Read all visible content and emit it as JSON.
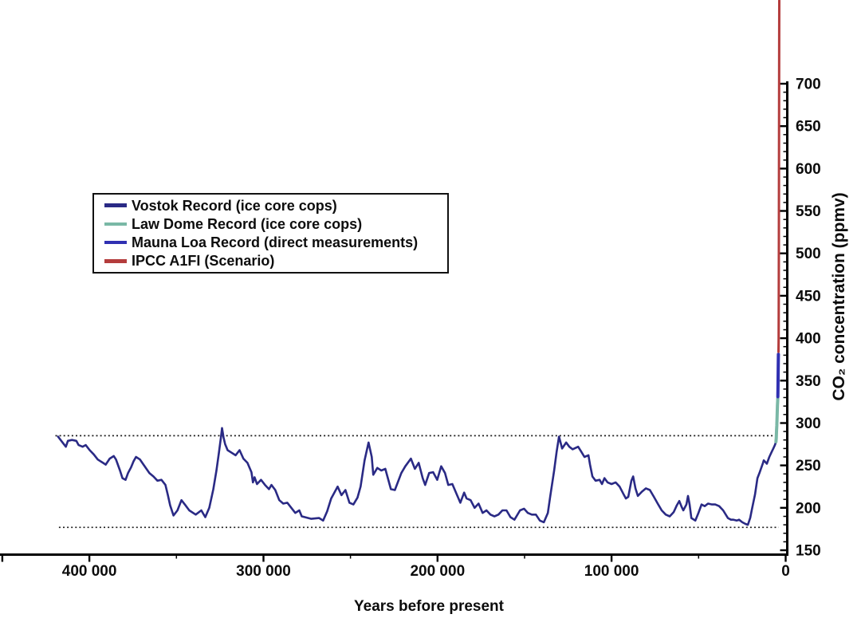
{
  "figure": {
    "background": "#ffffff"
  },
  "chart_data": {
    "type": "line",
    "x_axis": {
      "label": "Years before present",
      "reversed": true,
      "major_ticks": [
        {
          "value": 450000,
          "label": ""
        },
        {
          "value": 400000,
          "label": "400 000"
        },
        {
          "value": 300000,
          "label": "300 000"
        },
        {
          "value": 200000,
          "label": "200 000"
        },
        {
          "value": 100000,
          "label": "100 000"
        },
        {
          "value": 0,
          "label": "0"
        }
      ],
      "minor_ticks": [
        350000,
        250000,
        150000,
        50000
      ]
    },
    "y_axis": {
      "label": "CO₂ concentration (ppmv)",
      "side": "right",
      "range": [
        150,
        700
      ],
      "major_tick_step": 50,
      "minor_tick_step": 10,
      "ticks": [
        150,
        200,
        250,
        300,
        350,
        400,
        450,
        500,
        550,
        600,
        650,
        700
      ]
    },
    "reference_lines": [
      {
        "value": 285,
        "style": "dotted",
        "from_year": 419500,
        "to_year": 4000
      },
      {
        "value": 177,
        "style": "dotted",
        "from_year": 417500,
        "to_year": 4000
      }
    ],
    "series": [
      {
        "id": "vostok",
        "name": "Vostok Record (ice core cops)",
        "color": "#2a2a85",
        "stroke_width": 2.6,
        "points": [
          [
            418000,
            284
          ],
          [
            415400,
            277
          ],
          [
            413500,
            272
          ],
          [
            412300,
            279
          ],
          [
            410000,
            280
          ],
          [
            407500,
            279
          ],
          [
            406200,
            274
          ],
          [
            403900,
            272
          ],
          [
            402100,
            274
          ],
          [
            399800,
            268
          ],
          [
            397500,
            263
          ],
          [
            395200,
            257
          ],
          [
            392900,
            254
          ],
          [
            390600,
            251
          ],
          [
            388300,
            258
          ],
          [
            386000,
            261
          ],
          [
            384700,
            257
          ],
          [
            382400,
            244
          ],
          [
            381000,
            235
          ],
          [
            379200,
            233
          ],
          [
            377800,
            241
          ],
          [
            376000,
            248
          ],
          [
            374600,
            255
          ],
          [
            373200,
            260
          ],
          [
            370900,
            257
          ],
          [
            368600,
            250
          ],
          [
            365500,
            241
          ],
          [
            363200,
            237
          ],
          [
            360900,
            232
          ],
          [
            358600,
            233
          ],
          [
            356300,
            227
          ],
          [
            354900,
            215
          ],
          [
            353600,
            203
          ],
          [
            351700,
            191
          ],
          [
            349400,
            197
          ],
          [
            347100,
            209
          ],
          [
            344800,
            203
          ],
          [
            342600,
            197
          ],
          [
            338900,
            192
          ],
          [
            335700,
            197
          ],
          [
            333400,
            189
          ],
          [
            331100,
            200
          ],
          [
            328800,
            222
          ],
          [
            327000,
            244
          ],
          [
            325600,
            265
          ],
          [
            324300,
            285
          ],
          [
            323800,
            294
          ],
          [
            322900,
            283
          ],
          [
            322000,
            275
          ],
          [
            320600,
            268
          ],
          [
            318300,
            265
          ],
          [
            316000,
            262
          ],
          [
            313700,
            268
          ],
          [
            311500,
            258
          ],
          [
            309200,
            253
          ],
          [
            306900,
            242
          ],
          [
            306000,
            230
          ],
          [
            305100,
            236
          ],
          [
            303700,
            228
          ],
          [
            301400,
            233
          ],
          [
            299100,
            227
          ],
          [
            296800,
            222
          ],
          [
            295400,
            227
          ],
          [
            293200,
            221
          ],
          [
            290900,
            209
          ],
          [
            288600,
            205
          ],
          [
            286300,
            206
          ],
          [
            284000,
            200
          ],
          [
            281700,
            194
          ],
          [
            279400,
            197
          ],
          [
            278000,
            190
          ],
          [
            276200,
            189
          ],
          [
            272500,
            187
          ],
          [
            268000,
            188
          ],
          [
            265700,
            185
          ],
          [
            263400,
            196
          ],
          [
            261100,
            211
          ],
          [
            257400,
            225
          ],
          [
            255200,
            215
          ],
          [
            252900,
            221
          ],
          [
            250600,
            206
          ],
          [
            248300,
            204
          ],
          [
            246000,
            212
          ],
          [
            244200,
            225
          ],
          [
            241900,
            256
          ],
          [
            239600,
            277
          ],
          [
            237800,
            260
          ],
          [
            236900,
            239
          ],
          [
            234600,
            247
          ],
          [
            232300,
            244
          ],
          [
            230000,
            246
          ],
          [
            226800,
            222
          ],
          [
            224500,
            221
          ],
          [
            220800,
            241
          ],
          [
            218500,
            249
          ],
          [
            215300,
            258
          ],
          [
            213000,
            246
          ],
          [
            210800,
            253
          ],
          [
            208500,
            235
          ],
          [
            207100,
            227
          ],
          [
            204800,
            241
          ],
          [
            202500,
            242
          ],
          [
            200200,
            233
          ],
          [
            197900,
            249
          ],
          [
            195700,
            241
          ],
          [
            193800,
            227
          ],
          [
            191500,
            228
          ],
          [
            189200,
            217
          ],
          [
            186900,
            206
          ],
          [
            184700,
            218
          ],
          [
            183300,
            211
          ],
          [
            181000,
            209
          ],
          [
            178700,
            200
          ],
          [
            176400,
            205
          ],
          [
            174100,
            194
          ],
          [
            171900,
            197
          ],
          [
            169600,
            192
          ],
          [
            167300,
            190
          ],
          [
            165000,
            192
          ],
          [
            162700,
            197
          ],
          [
            160400,
            197
          ],
          [
            158100,
            189
          ],
          [
            155800,
            186
          ],
          [
            152600,
            197
          ],
          [
            150300,
            199
          ],
          [
            148100,
            194
          ],
          [
            145800,
            192
          ],
          [
            143500,
            192
          ],
          [
            141200,
            185
          ],
          [
            138900,
            183
          ],
          [
            136600,
            194
          ],
          [
            135300,
            213
          ],
          [
            133000,
            244
          ],
          [
            131600,
            266
          ],
          [
            130200,
            284
          ],
          [
            128400,
            270
          ],
          [
            126100,
            277
          ],
          [
            124300,
            272
          ],
          [
            122400,
            269
          ],
          [
            119200,
            272
          ],
          [
            117400,
            266
          ],
          [
            115600,
            260
          ],
          [
            113300,
            262
          ],
          [
            112400,
            251
          ],
          [
            111000,
            237
          ],
          [
            109200,
            232
          ],
          [
            106900,
            233
          ],
          [
            105500,
            228
          ],
          [
            104100,
            235
          ],
          [
            102300,
            230
          ],
          [
            100000,
            228
          ],
          [
            97700,
            230
          ],
          [
            95400,
            225
          ],
          [
            93100,
            216
          ],
          [
            91800,
            211
          ],
          [
            90400,
            213
          ],
          [
            88600,
            232
          ],
          [
            87600,
            237
          ],
          [
            86300,
            223
          ],
          [
            84900,
            214
          ],
          [
            82600,
            219
          ],
          [
            80300,
            223
          ],
          [
            78000,
            221
          ],
          [
            75700,
            213
          ],
          [
            73500,
            205
          ],
          [
            71200,
            197
          ],
          [
            68900,
            192
          ],
          [
            66600,
            190
          ],
          [
            64300,
            195
          ],
          [
            62500,
            203
          ],
          [
            61100,
            208
          ],
          [
            59700,
            201
          ],
          [
            58800,
            197
          ],
          [
            57000,
            204
          ],
          [
            56100,
            214
          ],
          [
            55200,
            204
          ],
          [
            54200,
            188
          ],
          [
            51900,
            185
          ],
          [
            50100,
            194
          ],
          [
            48300,
            204
          ],
          [
            46500,
            202
          ],
          [
            44600,
            205
          ],
          [
            42300,
            204
          ],
          [
            40500,
            204
          ],
          [
            38200,
            202
          ],
          [
            35900,
            197
          ],
          [
            33200,
            188
          ],
          [
            31400,
            186
          ],
          [
            30000,
            186
          ],
          [
            28100,
            185
          ],
          [
            26800,
            186
          ],
          [
            24900,
            183
          ],
          [
            23100,
            181
          ],
          [
            21700,
            180
          ],
          [
            20400,
            188
          ],
          [
            19500,
            197
          ],
          [
            18500,
            207
          ],
          [
            17600,
            216
          ],
          [
            16200,
            235
          ],
          [
            14900,
            242
          ],
          [
            13000,
            253
          ],
          [
            12600,
            256
          ],
          [
            11700,
            254
          ],
          [
            10800,
            252
          ],
          [
            9400,
            260
          ],
          [
            8000,
            266
          ],
          [
            7100,
            270
          ],
          [
            6200,
            274
          ],
          [
            5700,
            277
          ]
        ]
      },
      {
        "id": "law-dome",
        "name": "Law Dome Record (ice core cops)",
        "color": "#7ab8a6",
        "stroke_width": 4,
        "points": [
          [
            5600,
            278
          ],
          [
            5400,
            282
          ],
          [
            5300,
            287
          ],
          [
            5200,
            292
          ],
          [
            5100,
            297
          ],
          [
            5000,
            303
          ],
          [
            4900,
            309
          ],
          [
            4800,
            315
          ],
          [
            4700,
            321
          ],
          [
            4600,
            326
          ],
          [
            4550,
            329
          ]
        ]
      },
      {
        "id": "mauna-loa",
        "name": "Mauna Loa Record (direct measurements)",
        "color": "#3030b2",
        "stroke_width": 4,
        "points": [
          [
            4500,
            331
          ],
          [
            4450,
            337
          ],
          [
            4400,
            344
          ],
          [
            4350,
            352
          ],
          [
            4300,
            360
          ],
          [
            4250,
            368
          ],
          [
            4200,
            375
          ],
          [
            4150,
            381
          ]
        ]
      },
      {
        "id": "ipcc-a1fi",
        "name": "IPCC A1FI (Scenario)",
        "color": "#b43c3c",
        "stroke_width": 3,
        "points": [
          [
            4100,
            384
          ],
          [
            4050,
            400
          ],
          [
            4000,
            430
          ],
          [
            3950,
            470
          ],
          [
            3900,
            520
          ],
          [
            3850,
            580
          ],
          [
            3800,
            640
          ],
          [
            3750,
            700
          ],
          [
            3700,
            760
          ],
          [
            3680,
            798
          ]
        ]
      }
    ]
  }
}
